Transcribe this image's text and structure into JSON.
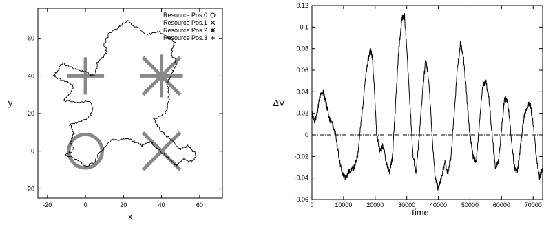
{
  "chart_data": [
    {
      "type": "scatter",
      "xlabel": "x",
      "ylabel": "y",
      "xlim": [
        -25,
        72
      ],
      "ylim": [
        -25,
        76
      ],
      "xticks": [
        -20,
        0,
        20,
        40,
        60
      ],
      "yticks": [
        -20,
        0,
        20,
        40,
        60
      ],
      "legend_position": "top-right",
      "legend": [
        {
          "label": "Resource Pos.0",
          "marker": "circle"
        },
        {
          "label": "Resource Pos.1",
          "marker": "x"
        },
        {
          "label": "Resource Pos.2",
          "marker": "star"
        },
        {
          "label": "Resource Pos.3",
          "marker": "plus"
        }
      ],
      "resources": [
        {
          "marker": "circle",
          "x": 0,
          "y": 0
        },
        {
          "marker": "x",
          "x": 40,
          "y": 0
        },
        {
          "marker": "star",
          "x": 40,
          "y": 40
        },
        {
          "marker": "plus",
          "x": 0,
          "y": 40
        }
      ],
      "marker_color": "#888888",
      "path_color": "#000000",
      "trajectory": [
        [
          5,
          40
        ],
        [
          0,
          42
        ],
        [
          -6,
          44
        ],
        [
          -12,
          47
        ],
        [
          -15,
          42
        ],
        [
          -17,
          40
        ],
        [
          -12,
          38
        ],
        [
          -6,
          35
        ],
        [
          -8,
          30
        ],
        [
          -12,
          27
        ],
        [
          -4,
          26
        ],
        [
          2,
          27
        ],
        [
          4,
          22
        ],
        [
          2,
          18
        ],
        [
          -4,
          15
        ],
        [
          -8,
          14
        ],
        [
          -6,
          9
        ],
        [
          -8,
          5
        ],
        [
          -6,
          1
        ],
        [
          -10,
          -2
        ],
        [
          -4,
          -5
        ],
        [
          0,
          -8
        ],
        [
          5,
          -6
        ],
        [
          7,
          -2
        ],
        [
          10,
          2
        ],
        [
          14,
          6
        ],
        [
          18,
          6
        ],
        [
          22,
          7
        ],
        [
          26,
          5
        ],
        [
          30,
          3
        ],
        [
          34,
          5
        ],
        [
          38,
          1
        ],
        [
          44,
          -4
        ],
        [
          48,
          -8
        ],
        [
          52,
          -4
        ],
        [
          56,
          -6
        ],
        [
          58,
          -2
        ],
        [
          54,
          3
        ],
        [
          50,
          1
        ],
        [
          44,
          7
        ],
        [
          40,
          10
        ],
        [
          38,
          14
        ],
        [
          36,
          17
        ],
        [
          42,
          20
        ],
        [
          44,
          28
        ],
        [
          43,
          36
        ],
        [
          46,
          42
        ],
        [
          48,
          47
        ],
        [
          45,
          52
        ],
        [
          47,
          58
        ],
        [
          43,
          61
        ],
        [
          38,
          64
        ],
        [
          33,
          62
        ],
        [
          28,
          65
        ],
        [
          22,
          69
        ],
        [
          17,
          66
        ],
        [
          12,
          62
        ],
        [
          10,
          57
        ],
        [
          11,
          52
        ],
        [
          6,
          47
        ],
        [
          5,
          40
        ]
      ]
    },
    {
      "type": "line",
      "xlabel": "time",
      "ylabel": "ΔV",
      "xlim": [
        0,
        73000
      ],
      "ylim": [
        -0.06,
        0.12
      ],
      "xticks": [
        0,
        10000,
        20000,
        30000,
        40000,
        50000,
        60000,
        70000
      ],
      "yticks": [
        -0.06,
        -0.04,
        -0.02,
        0,
        0.02,
        0.04,
        0.06,
        0.08,
        0.1,
        0.12
      ],
      "zero_line": 0,
      "line_color": "#000000",
      "x": [
        0,
        800,
        1600,
        2500,
        3500,
        4500,
        5500,
        6500,
        7500,
        8500,
        9500,
        10500,
        11500,
        12500,
        13500,
        14500,
        15500,
        16500,
        17500,
        18500,
        19200,
        19800,
        20500,
        21500,
        22500,
        23500,
        24500,
        25500,
        26500,
        27500,
        28500,
        29300,
        30000,
        31000,
        32000,
        33000,
        34000,
        35000,
        36000,
        37000,
        38000,
        39000,
        40000,
        41000,
        42000,
        43000,
        44000,
        45000,
        46000,
        47000,
        48000,
        49000,
        50000,
        51000,
        52000,
        53000,
        54000,
        55000,
        56000,
        57000,
        58000,
        59000,
        60000,
        61000,
        62000,
        63000,
        64000,
        65000,
        66000,
        67000,
        68000,
        69000,
        70000,
        71000,
        72000,
        73000
      ],
      "values": [
        0.02,
        0.012,
        0.02,
        0.035,
        0.04,
        0.03,
        0.015,
        0.01,
        0.0,
        -0.02,
        -0.035,
        -0.04,
        -0.035,
        -0.032,
        -0.03,
        -0.018,
        0.01,
        0.04,
        0.065,
        0.08,
        0.07,
        0.04,
        0.0,
        -0.015,
        -0.01,
        -0.025,
        -0.035,
        -0.02,
        0.03,
        0.08,
        0.108,
        0.11,
        0.08,
        0.03,
        -0.02,
        -0.035,
        0.0,
        0.04,
        0.07,
        0.05,
        0.0,
        -0.04,
        -0.05,
        -0.04,
        -0.025,
        -0.035,
        -0.02,
        0.02,
        0.06,
        0.085,
        0.07,
        0.035,
        0.0,
        -0.02,
        -0.025,
        0.01,
        0.045,
        0.05,
        0.035,
        0.0,
        -0.03,
        -0.025,
        0.005,
        0.035,
        0.03,
        0.0,
        -0.03,
        -0.035,
        -0.01,
        0.015,
        0.025,
        0.03,
        0.01,
        -0.02,
        -0.04,
        -0.03
      ]
    }
  ]
}
